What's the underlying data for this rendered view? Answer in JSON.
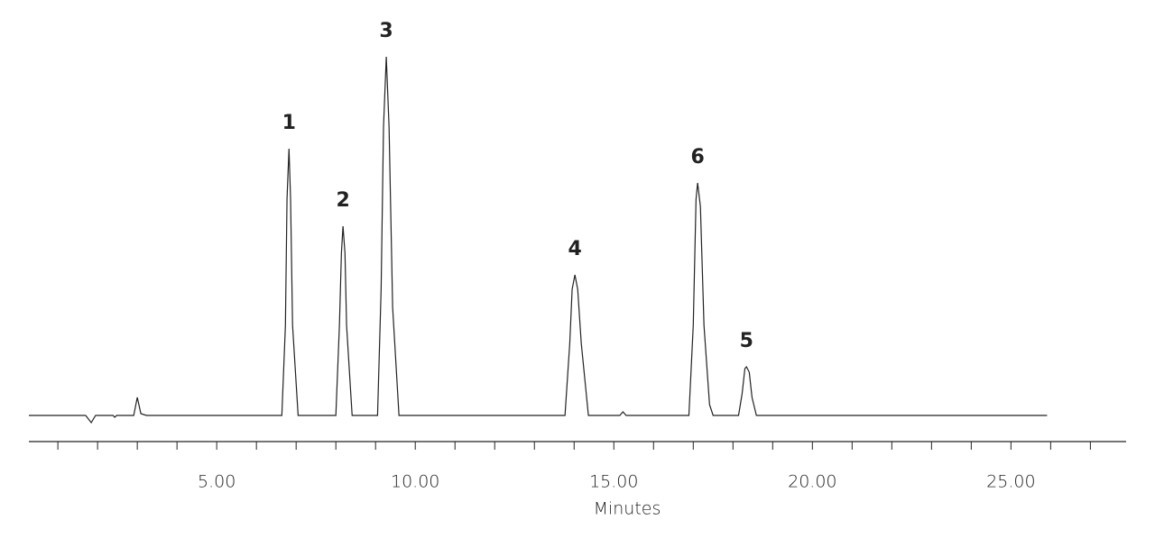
{
  "chart_data": {
    "type": "line",
    "x_label": "Minutes",
    "xlim": [
      0.27,
      27.9
    ],
    "ylim": [
      0,
      100
    ],
    "xticks": [
      {
        "value": 5,
        "label": "5.00"
      },
      {
        "value": 10,
        "label": "10.00"
      },
      {
        "value": 15,
        "label": "15.00"
      },
      {
        "value": 20,
        "label": "20.00"
      },
      {
        "value": 25,
        "label": "25.00"
      }
    ],
    "minor_xticks": [
      1,
      2,
      3,
      4,
      6,
      7,
      8,
      9,
      11,
      12,
      13,
      14,
      16,
      17,
      18,
      19,
      21,
      22,
      23,
      24,
      26,
      27
    ],
    "x": [
      0.27,
      1.7,
      1.84,
      1.95,
      2.39,
      2.43,
      2.48,
      2.91,
      3.0,
      3.09,
      3.23,
      5.41,
      6.64,
      6.73,
      6.77,
      6.82,
      6.86,
      6.91,
      7.05,
      8.0,
      8.09,
      8.14,
      8.18,
      8.23,
      8.27,
      8.41,
      9.05,
      9.14,
      9.2,
      9.27,
      9.34,
      9.43,
      9.59,
      13.77,
      13.89,
      13.95,
      14.02,
      14.09,
      14.18,
      14.36,
      15.15,
      15.23,
      15.31,
      16.89,
      17.0,
      17.07,
      17.11,
      17.18,
      17.27,
      17.41,
      17.5,
      18.14,
      18.23,
      18.3,
      18.34,
      18.41,
      18.48,
      18.59,
      25.91
    ],
    "series": [
      {
        "color": "#222222",
        "values": [
          0,
          0,
          -2,
          0,
          0,
          -0.5,
          0,
          0,
          5,
          0.5,
          0,
          0,
          0,
          25,
          60,
          74,
          60,
          25,
          0,
          0,
          25,
          45,
          52.5,
          45,
          25,
          0,
          0,
          35,
          80,
          99.5,
          80,
          30,
          0,
          0,
          20,
          35,
          39,
          35,
          20,
          0,
          0,
          1,
          0,
          0,
          25,
          60,
          64.5,
          58,
          25,
          3,
          0,
          0,
          6,
          13,
          13.5,
          12,
          5,
          0,
          0
        ]
      }
    ],
    "annotations": [
      {
        "text": "1",
        "x": 6.82,
        "y": 74
      },
      {
        "text": "2",
        "x": 8.18,
        "y": 52.5
      },
      {
        "text": "3",
        "x": 9.27,
        "y": 99.5
      },
      {
        "text": "4",
        "x": 14.02,
        "y": 39
      },
      {
        "text": "6",
        "x": 17.11,
        "y": 64.5
      },
      {
        "text": "5",
        "x": 18.34,
        "y": 13.5
      }
    ]
  }
}
